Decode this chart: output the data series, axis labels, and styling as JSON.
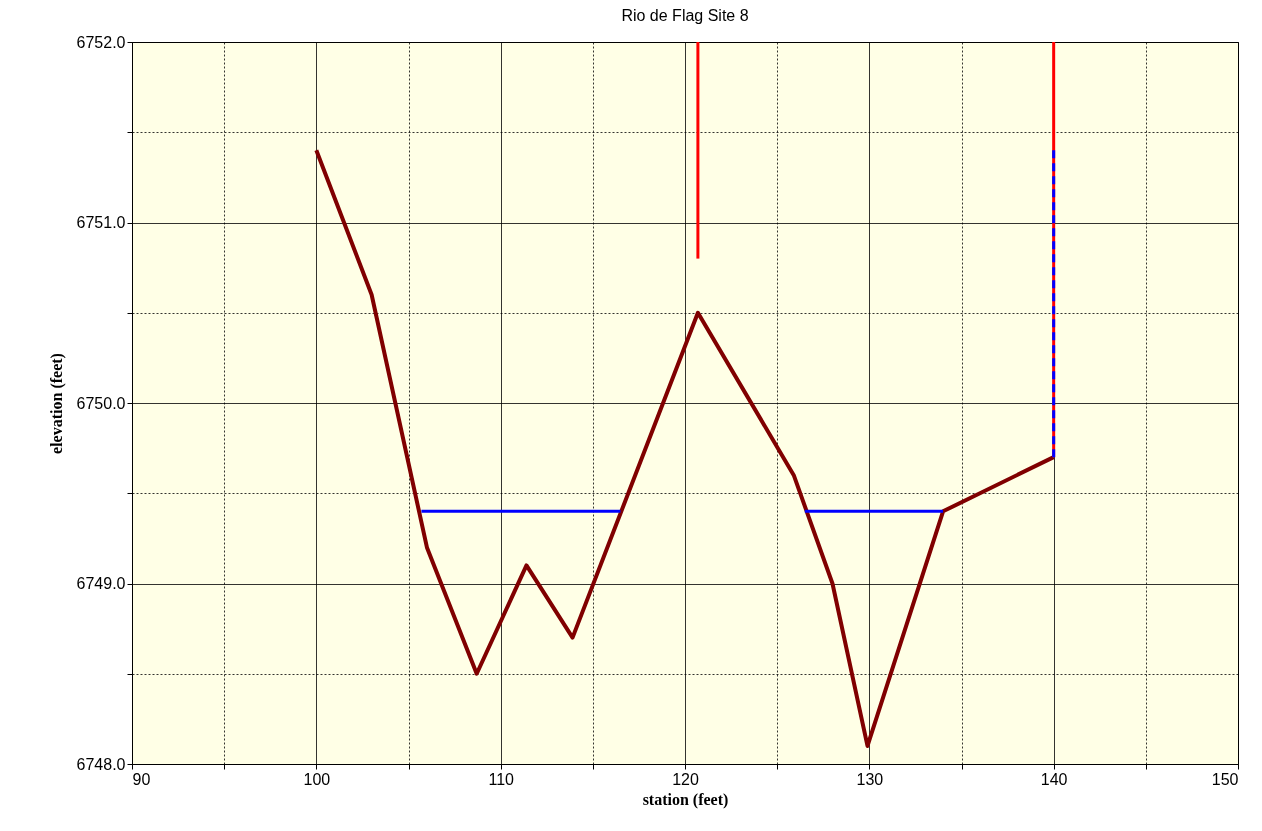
{
  "chart_data": {
    "type": "line",
    "title": "Rio de Flag Site 8",
    "xlabel": "station (feet)",
    "ylabel": "elevation (feet)",
    "xlim": [
      90,
      150
    ],
    "ylim": [
      6748,
      6752
    ],
    "xticks": [
      90,
      {
        "value": 95,
        "label": null
      },
      100,
      {
        "value": 105,
        "label": null
      },
      110,
      {
        "value": 115,
        "label": null
      },
      120,
      {
        "value": 125,
        "label": null
      },
      130,
      {
        "value": 135,
        "label": null
      },
      140,
      {
        "value": 145,
        "label": null
      },
      150
    ],
    "yticks": [
      {
        "value": 6748,
        "label": "6748.0"
      },
      {
        "value": 6748.5,
        "label": null
      },
      {
        "value": 6749,
        "label": "6749.0"
      },
      {
        "value": 6749.5,
        "label": null
      },
      {
        "value": 6750,
        "label": "6750.0"
      },
      {
        "value": 6750.5,
        "label": null
      },
      {
        "value": 6751,
        "label": "6751.0"
      },
      {
        "value": 6751.5,
        "label": null
      },
      {
        "value": 6752,
        "label": "6752.0"
      }
    ],
    "grid": true,
    "marker": "none",
    "series": [
      {
        "color": "#800000",
        "line_style": "solid",
        "x": [
          100,
          103,
          106,
          108.7,
          111.4,
          113.9,
          120.7,
          125.9,
          128,
          129.9,
          134,
          140
        ],
        "values": [
          6751.4,
          6750.6,
          6749.2,
          6748.5,
          6749.1,
          6748.7,
          6750.5,
          6749.6,
          6749,
          6748.1,
          6749.4,
          6749.7
        ]
      },
      {
        "color": "#0000ff",
        "line_style": "solid",
        "x": [
          105.7,
          116.5
        ],
        "values": [
          6749.4,
          6749.4
        ]
      },
      {
        "color": "#0000ff",
        "line_style": "solid",
        "x": [
          126.5,
          134
        ],
        "values": [
          6749.4,
          6749.4
        ]
      },
      {
        "color": "#ff0000",
        "line_style": "solid",
        "x": [
          120.7,
          120.7
        ],
        "values": [
          6752,
          6750.8
        ]
      },
      {
        "color": "#ff0000",
        "line_style": "solid",
        "x": [
          140,
          140
        ],
        "values": [
          6752,
          6749.7
        ]
      },
      {
        "color": "#0000ff",
        "line_style": "dashed",
        "x": [
          140,
          140
        ],
        "values": [
          6751.4,
          6749.7
        ]
      }
    ]
  }
}
